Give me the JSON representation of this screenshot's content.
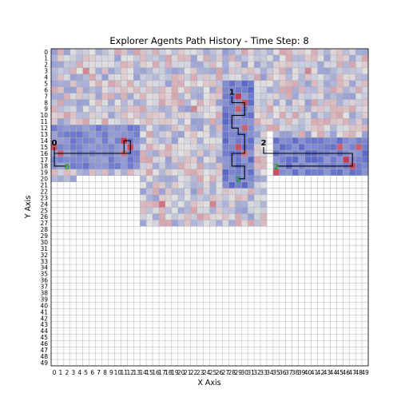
{
  "chart_data": {
    "type": "heatmap",
    "title": "Explorer Agents Path History - Time Step: 8",
    "xlabel": "X Axis",
    "ylabel": "Y Axis",
    "grid": true,
    "x_ticks": [
      0,
      1,
      2,
      3,
      4,
      5,
      6,
      7,
      8,
      9,
      10,
      11,
      12,
      13,
      14,
      15,
      16,
      17,
      18,
      19,
      20,
      21,
      22,
      23,
      24,
      25,
      26,
      27,
      28,
      29,
      30,
      31,
      32,
      33,
      34,
      35,
      36,
      37,
      38,
      39,
      40,
      41,
      42,
      43,
      44,
      45,
      46,
      47,
      48,
      49
    ],
    "y_ticks": [
      0,
      1,
      2,
      3,
      4,
      5,
      6,
      7,
      8,
      9,
      10,
      11,
      12,
      13,
      14,
      15,
      16,
      17,
      18,
      19,
      20,
      21,
      22,
      23,
      24,
      25,
      26,
      27,
      28,
      29,
      30,
      31,
      32,
      33,
      34,
      35,
      36,
      37,
      38,
      39,
      40,
      41,
      42,
      43,
      44,
      45,
      46,
      47,
      48,
      49
    ],
    "colors": {
      "cold": "#3b4cc0",
      "neutral": "#dddddd",
      "hot": "#b40426",
      "path": "#000000",
      "start_label": "#000000",
      "end_label": "#2ca02c",
      "grid": "#b0b0b0"
    },
    "explored_regions": [
      {
        "x": [
          0,
          49
        ],
        "y": [
          0,
          12
        ]
      },
      {
        "x": [
          0,
          13
        ],
        "y": [
          13,
          19
        ]
      },
      {
        "x": [
          35,
          49
        ],
        "y": [
          13,
          19
        ]
      },
      {
        "x": [
          14,
          33
        ],
        "y": [
          13,
          20
        ]
      },
      {
        "x": [
          14,
          33
        ],
        "y": [
          21,
          27
        ]
      },
      {
        "x": [
          0,
          3
        ],
        "y": [
          20,
          20
        ]
      }
    ],
    "intense_regions": [
      {
        "x": [
          27,
          31
        ],
        "y": [
          5,
          21
        ],
        "level": -0.8
      },
      {
        "x": [
          0,
          13
        ],
        "y": [
          12,
          18
        ],
        "level": -0.7
      },
      {
        "x": [
          35,
          49
        ],
        "y": [
          14,
          19
        ],
        "level": -0.8
      }
    ],
    "hot_spots": [
      {
        "x": 29,
        "y": 7,
        "level": 0.9
      },
      {
        "x": 30,
        "y": 8,
        "level": 0.8
      },
      {
        "x": 29,
        "y": 9,
        "level": 0.7
      },
      {
        "x": 30,
        "y": 12,
        "level": 0.7
      },
      {
        "x": 29,
        "y": 15,
        "level": 0.8
      },
      {
        "x": 30,
        "y": 16,
        "level": 0.6
      },
      {
        "x": 0,
        "y": 15,
        "level": 0.8
      },
      {
        "x": 1,
        "y": 16,
        "level": 0.7
      },
      {
        "x": 11,
        "y": 14,
        "level": 0.9
      },
      {
        "x": 12,
        "y": 15,
        "level": 0.8
      },
      {
        "x": 11,
        "y": 16,
        "level": 0.6
      },
      {
        "x": 34,
        "y": 18,
        "level": 0.9
      },
      {
        "x": 35,
        "y": 19,
        "level": 0.8
      },
      {
        "x": 46,
        "y": 17,
        "level": 0.9
      },
      {
        "x": 47,
        "y": 18,
        "level": 0.8
      },
      {
        "x": 45,
        "y": 15,
        "level": 0.7
      },
      {
        "x": 48,
        "y": 15,
        "level": 0.7
      },
      {
        "x": 22,
        "y": 9,
        "level": 0.5
      },
      {
        "x": 17,
        "y": 24,
        "level": 0.6
      },
      {
        "x": 25,
        "y": 24,
        "level": 0.5
      },
      {
        "x": 5,
        "y": 3,
        "level": 0.5
      },
      {
        "x": 40,
        "y": 3,
        "level": 0.5
      }
    ],
    "agents": [
      {
        "id": "0",
        "start": {
          "x": 0,
          "y": 15
        },
        "end": {
          "x": 2,
          "y": 18
        },
        "path": [
          [
            0,
            15
          ],
          [
            0,
            16
          ],
          [
            11,
            16
          ],
          [
            11,
            14
          ],
          [
            12,
            14
          ],
          [
            12,
            16
          ],
          [
            0,
            16
          ],
          [
            0,
            18
          ],
          [
            2,
            18
          ]
        ]
      },
      {
        "id": "1",
        "start": {
          "x": 28,
          "y": 7
        },
        "end": {
          "x": 29,
          "y": 20
        },
        "path": [
          [
            28,
            7
          ],
          [
            28,
            8
          ],
          [
            30,
            8
          ],
          [
            30,
            10
          ],
          [
            28,
            10
          ],
          [
            28,
            12
          ],
          [
            29,
            12
          ],
          [
            29,
            13
          ],
          [
            30,
            13
          ],
          [
            30,
            16
          ],
          [
            28,
            16
          ],
          [
            28,
            18
          ],
          [
            30,
            18
          ],
          [
            30,
            20
          ],
          [
            29,
            20
          ]
        ]
      },
      {
        "id": "2",
        "start": {
          "x": 33,
          "y": 15
        },
        "end": {
          "x": 35,
          "y": 18
        },
        "path": [
          [
            33,
            15
          ],
          [
            33,
            16
          ],
          [
            47,
            16
          ],
          [
            47,
            18
          ],
          [
            35,
            18
          ]
        ]
      }
    ]
  }
}
